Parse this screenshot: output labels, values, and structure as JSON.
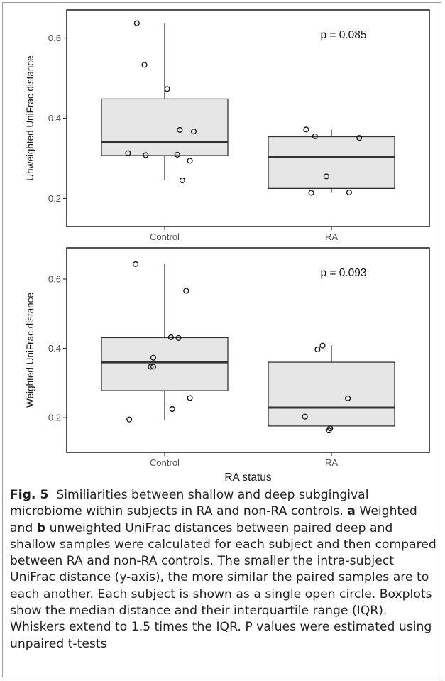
{
  "chart_data": [
    {
      "type": "box",
      "ylabel": "Unweighted UniFrac distance",
      "xlabel": "",
      "ylim": [
        0.13,
        0.67
      ],
      "yticks": [
        0.2,
        0.4,
        0.6
      ],
      "ytick_labels": [
        "0.2",
        "0.4",
        "0.6"
      ],
      "categories": [
        "Control",
        "RA"
      ],
      "annotation": "p = 0.085",
      "boxes": [
        {
          "name": "Control",
          "q1": 0.307,
          "median": 0.341,
          "q3": 0.448,
          "whisker_low": 0.245,
          "whisker_high": 0.637
        },
        {
          "name": "RA",
          "q1": 0.225,
          "median": 0.303,
          "q3": 0.354,
          "whisker_low": 0.214,
          "whisker_high": 0.372
        }
      ],
      "points": [
        {
          "group": "Control",
          "offset": -0.22,
          "y": 0.637
        },
        {
          "group": "Control",
          "offset": -0.16,
          "y": 0.533
        },
        {
          "group": "Control",
          "offset": 0.02,
          "y": 0.473
        },
        {
          "group": "Control",
          "offset": 0.12,
          "y": 0.371
        },
        {
          "group": "Control",
          "offset": 0.23,
          "y": 0.367
        },
        {
          "group": "Control",
          "offset": -0.29,
          "y": 0.313
        },
        {
          "group": "Control",
          "offset": -0.15,
          "y": 0.308
        },
        {
          "group": "Control",
          "offset": 0.1,
          "y": 0.309
        },
        {
          "group": "Control",
          "offset": 0.2,
          "y": 0.294
        },
        {
          "group": "Control",
          "offset": 0.14,
          "y": 0.245
        },
        {
          "group": "RA",
          "offset": -0.2,
          "y": 0.372
        },
        {
          "group": "RA",
          "offset": -0.13,
          "y": 0.355
        },
        {
          "group": "RA",
          "offset": 0.22,
          "y": 0.351
        },
        {
          "group": "RA",
          "offset": -0.04,
          "y": 0.255
        },
        {
          "group": "RA",
          "offset": -0.16,
          "y": 0.214
        },
        {
          "group": "RA",
          "offset": 0.14,
          "y": 0.215
        }
      ]
    },
    {
      "type": "box",
      "ylabel": "Weighted UniFrac distance",
      "xlabel": "RA status",
      "ylim": [
        0.1,
        0.69
      ],
      "yticks": [
        0.2,
        0.4,
        0.6
      ],
      "ytick_labels": [
        "0.2",
        "0.4",
        "0.6"
      ],
      "categories": [
        "Control",
        "RA"
      ],
      "annotation": "p = 0.093",
      "boxes": [
        {
          "name": "Control",
          "q1": 0.278,
          "median": 0.36,
          "q3": 0.431,
          "whisker_low": 0.192,
          "whisker_high": 0.643
        },
        {
          "name": "RA",
          "q1": 0.176,
          "median": 0.229,
          "q3": 0.36,
          "whisker_low": 0.163,
          "whisker_high": 0.409
        }
      ],
      "points": [
        {
          "group": "Control",
          "offset": -0.23,
          "y": 0.643
        },
        {
          "group": "Control",
          "offset": 0.17,
          "y": 0.566
        },
        {
          "group": "Control",
          "offset": 0.05,
          "y": 0.432
        },
        {
          "group": "Control",
          "offset": 0.11,
          "y": 0.43
        },
        {
          "group": "Control",
          "offset": -0.09,
          "y": 0.373
        },
        {
          "group": "Control",
          "offset": -0.11,
          "y": 0.347
        },
        {
          "group": "Control",
          "offset": -0.09,
          "y": 0.347
        },
        {
          "group": "Control",
          "offset": 0.2,
          "y": 0.257
        },
        {
          "group": "Control",
          "offset": 0.06,
          "y": 0.225
        },
        {
          "group": "Control",
          "offset": -0.28,
          "y": 0.195
        },
        {
          "group": "RA",
          "offset": -0.07,
          "y": 0.408
        },
        {
          "group": "RA",
          "offset": -0.11,
          "y": 0.397
        },
        {
          "group": "RA",
          "offset": 0.13,
          "y": 0.256
        },
        {
          "group": "RA",
          "offset": -0.21,
          "y": 0.203
        },
        {
          "group": "RA",
          "offset": -0.01,
          "y": 0.169
        },
        {
          "group": "RA",
          "offset": -0.02,
          "y": 0.163
        }
      ]
    }
  ],
  "caption": {
    "fig_label": "Fig. 5",
    "text_1": "Similiarities between shallow and deep subgingival microbiome within subjects in RA and non-RA controls.",
    "panel_a": "a",
    "text_2": "Weighted and",
    "panel_b": "b",
    "text_3": "unweighted UniFrac distances between paired deep and shallow samples were calculated for each subject and then compared between RA and non-RA controls. The smaller the intra-subject UniFrac distance (y-axis), the more similar the paired samples are to each another. Each subject is shown as a single open circle. Boxplots show the median distance and their interquartile range (IQR). Whiskers extend to 1.5 times the IQR. P values were estimated using unpaired t-tests"
  }
}
